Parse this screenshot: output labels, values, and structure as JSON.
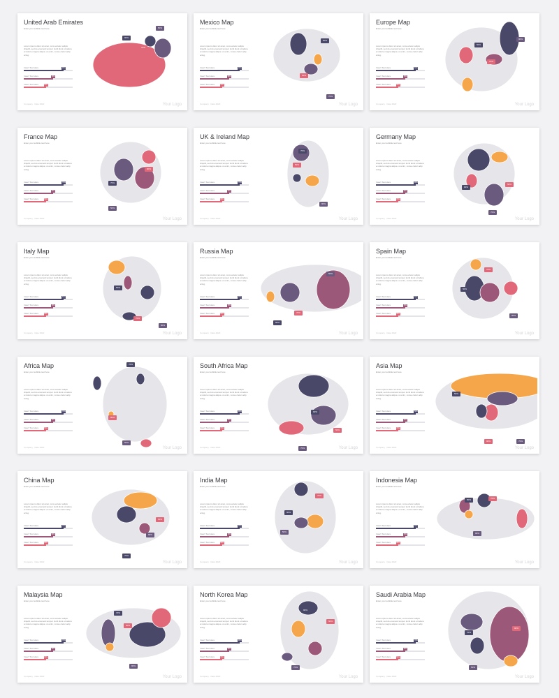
{
  "colors": {
    "dark": "#4a4868",
    "rose": "#e06878",
    "plum": "#9c5878",
    "purple": "#6a5a7e",
    "orange": "#f6a64a",
    "gray": "#e6e6ea"
  },
  "common": {
    "subtitle": "Enter your subtitle text here",
    "body": "Lorem ipsum dolor sit amet, cons ectetur adipis cliquilit, sed do eiusmod tempor incid idunt ut labore et dolore magna aliqua. ut enim, conse ctetur adip scing.",
    "footer": "Company · Date 2020",
    "logo": "Your Logo",
    "bar_label": "Insert Text Here"
  },
  "slides": [
    {
      "title": "United Arab Emirates",
      "tags": [
        "90%",
        "70%",
        "50%"
      ]
    },
    {
      "title": "Mexico Map",
      "tags": [
        "90%",
        "50%",
        "70%"
      ]
    },
    {
      "title": "Europe Map",
      "tags": [
        "50%",
        "70%",
        "90%"
      ]
    },
    {
      "title": "France Map",
      "tags": [
        "70%",
        "90%",
        "50%"
      ]
    },
    {
      "title": "UK & Ireland Map",
      "tags": [
        "70%",
        "50%",
        "90%"
      ]
    },
    {
      "title": "Germany Map",
      "tags": [
        "90%",
        "50%",
        "70%"
      ]
    },
    {
      "title": "Italy Map",
      "tags": [
        "50%",
        "70%",
        "90%"
      ]
    },
    {
      "title": "Russia Map",
      "tags": [
        "90%",
        "70%",
        "50%"
      ]
    },
    {
      "title": "Spain Map",
      "tags": [
        "50%",
        "70%",
        "90%"
      ]
    },
    {
      "title": "Africa Map",
      "tags": [
        "70%",
        "90%",
        "50%"
      ]
    },
    {
      "title": "South Africa Map",
      "tags": [
        "90%",
        "50%",
        "70%"
      ]
    },
    {
      "title": "Asia Map",
      "tags": [
        "50%",
        "90%",
        "70%"
      ]
    },
    {
      "title": "China Map",
      "tags": [
        "70%",
        "50%",
        "90%"
      ]
    },
    {
      "title": "India Map",
      "tags": [
        "90%",
        "70%",
        "50%"
      ]
    },
    {
      "title": "Indonesia Map",
      "tags": [
        "50%",
        "70%",
        "90%"
      ]
    },
    {
      "title": "Malaysia Map",
      "tags": [
        "70%",
        "50%",
        "90%"
      ]
    },
    {
      "title": "North Korea Map",
      "tags": [
        "90%",
        "50%",
        "70%"
      ]
    },
    {
      "title": "Saudi Arabia Map",
      "tags": [
        "70%",
        "90%",
        "50%"
      ]
    }
  ]
}
